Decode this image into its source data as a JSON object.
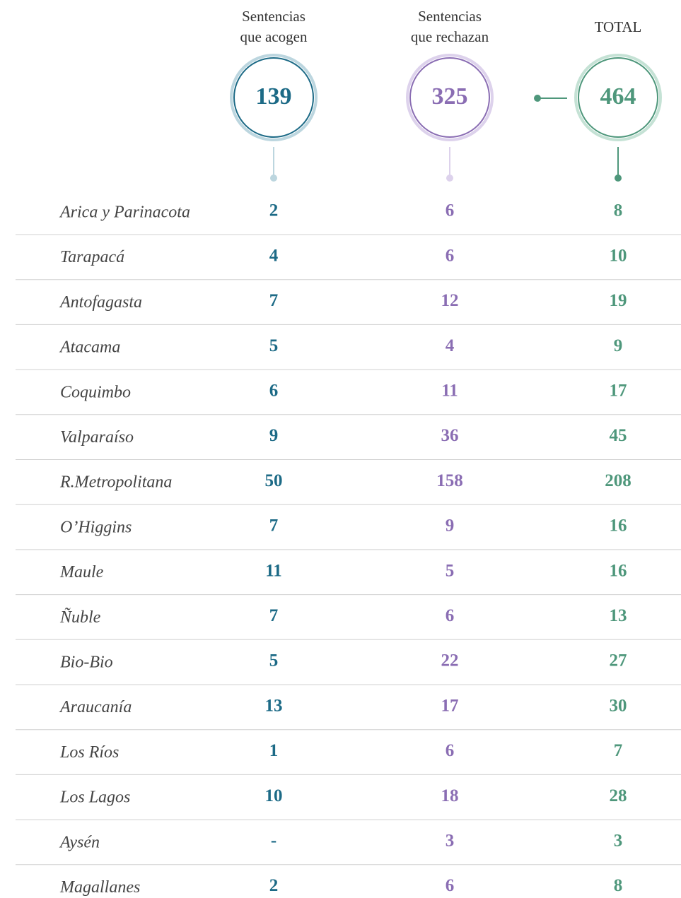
{
  "header": {
    "columns": [
      {
        "lines": [
          "Sentencias",
          "que acogen"
        ],
        "total": 139
      },
      {
        "lines": [
          "Sentencias",
          "que rechazan"
        ],
        "total": 325
      },
      {
        "lines": [
          "TOTAL"
        ],
        "total": 464
      }
    ]
  },
  "table": {
    "rows": [
      [
        "Arica y Parinacota",
        2,
        6,
        8
      ],
      [
        "Tarapacá",
        4,
        6,
        10
      ],
      [
        "Antofagasta",
        7,
        12,
        19
      ],
      [
        "Atacama",
        5,
        4,
        9
      ],
      [
        "Coquimbo",
        6,
        11,
        17
      ],
      [
        "Valparaíso",
        9,
        36,
        45
      ],
      [
        "R.Metropolitana",
        50,
        158,
        208
      ],
      [
        "O’Higgins",
        7,
        9,
        16
      ],
      [
        "Maule",
        11,
        5,
        16
      ],
      [
        "Ñuble",
        7,
        6,
        13
      ],
      [
        "Bio-Bio",
        5,
        22,
        27
      ],
      [
        "Araucanía",
        13,
        17,
        30
      ],
      [
        "Los Ríos",
        1,
        6,
        7
      ],
      [
        "Los Lagos",
        10,
        18,
        28
      ],
      [
        "Aysén",
        "-",
        3,
        3
      ],
      [
        "Magallanes",
        2,
        6,
        8
      ]
    ]
  }
}
